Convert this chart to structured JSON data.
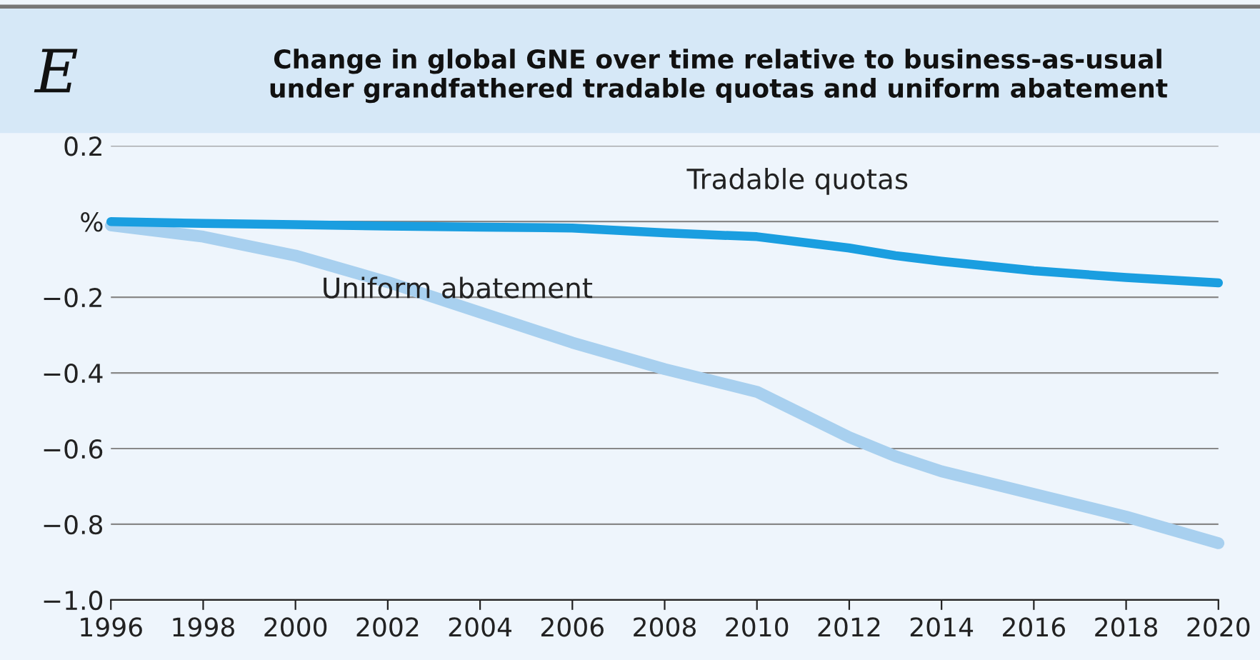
{
  "chart_data": {
    "type": "line",
    "title": "Change in global GNE over time relative to business-as-usual\nunder grandfathered tradable quotas and uniform abatement",
    "annotations": [
      "E"
    ],
    "x": [
      1996,
      1998,
      2000,
      2002,
      2004,
      2006,
      2008,
      2010,
      2012,
      2013,
      2014,
      2016,
      2018,
      2020
    ],
    "series": [
      {
        "name": "Tradable quotas",
        "color": "#1a9ee0",
        "values": [
          0,
          -0.005,
          -0.008,
          -0.012,
          -0.015,
          -0.017,
          -0.03,
          -0.04,
          -0.07,
          -0.09,
          -0.105,
          -0.13,
          -0.148,
          -0.162
        ]
      },
      {
        "name": "Uniform abatement",
        "color": "#a8d0ef",
        "values": [
          -0.01,
          -0.04,
          -0.09,
          -0.16,
          -0.24,
          -0.32,
          -0.39,
          -0.45,
          -0.57,
          -0.62,
          -0.66,
          -0.72,
          -0.78,
          -0.85
        ]
      }
    ],
    "xlim": [
      1996,
      2020
    ],
    "xticks": [
      1996,
      1998,
      2000,
      2002,
      2004,
      2006,
      2008,
      2010,
      2012,
      2014,
      2016,
      2018,
      2020
    ],
    "ylim": [
      -1.0,
      0.2
    ],
    "yticks": [
      {
        "value": -1.0,
        "label": "−1.0"
      },
      {
        "value": -0.8,
        "label": "−0.8"
      },
      {
        "value": -0.6,
        "label": "−0.6"
      },
      {
        "value": -0.4,
        "label": "−0.4"
      },
      {
        "value": -0.2,
        "label": "−0.2"
      },
      {
        "value": 0,
        "label": "%"
      },
      {
        "value": 0.2,
        "label": "0.2"
      }
    ],
    "grid": "y",
    "legend": false,
    "line_style": "solid",
    "marker": "none"
  }
}
